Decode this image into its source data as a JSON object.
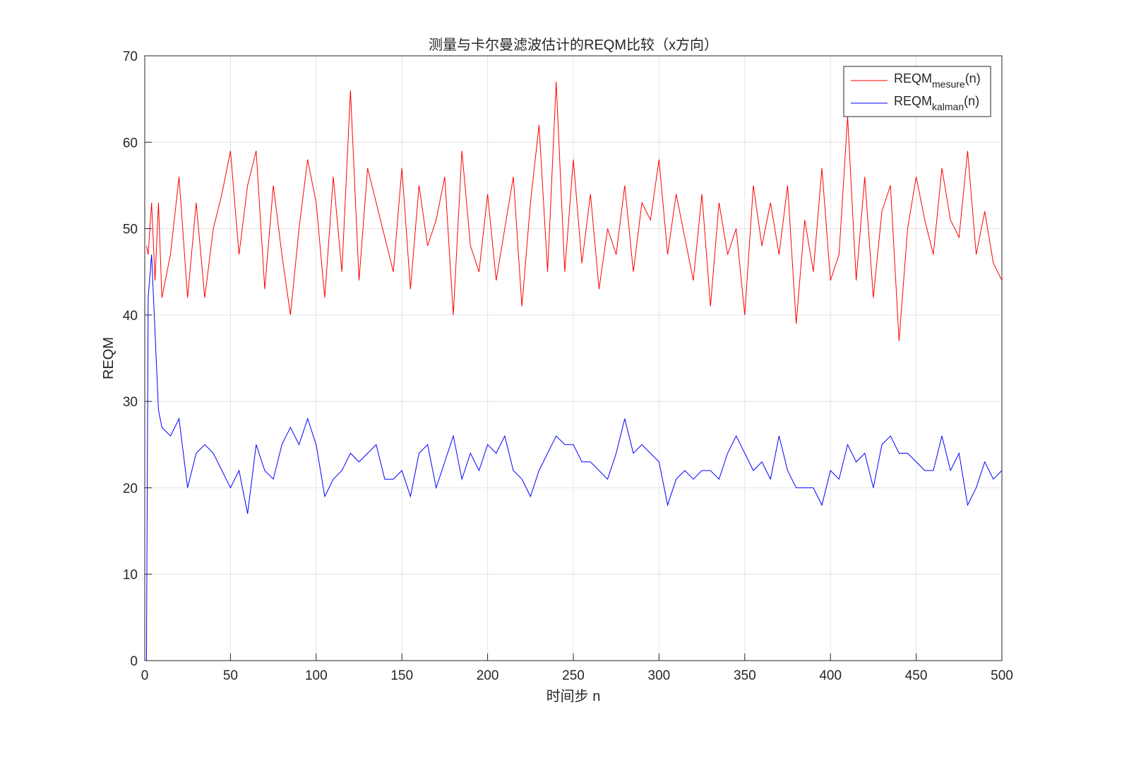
{
  "chart_data": {
    "type": "line",
    "title": "测量与卡尔曼滤波估计的REQM比较（x方向）",
    "xlabel": "时间步 n",
    "ylabel": "REQM",
    "xlim": [
      0,
      500
    ],
    "ylim": [
      0,
      70
    ],
    "xticks": [
      0,
      50,
      100,
      150,
      200,
      250,
      300,
      350,
      400,
      450,
      500
    ],
    "yticks": [
      0,
      10,
      20,
      30,
      40,
      50,
      60,
      70
    ],
    "grid": true,
    "legend": "top-right",
    "x": [
      1,
      2,
      4,
      6,
      8,
      10,
      15,
      20,
      25,
      30,
      35,
      40,
      45,
      50,
      55,
      60,
      65,
      70,
      75,
      80,
      85,
      90,
      95,
      100,
      105,
      110,
      115,
      120,
      125,
      130,
      135,
      140,
      145,
      150,
      155,
      160,
      165,
      170,
      175,
      180,
      185,
      190,
      195,
      200,
      205,
      210,
      215,
      220,
      225,
      230,
      235,
      240,
      245,
      250,
      255,
      260,
      265,
      270,
      275,
      280,
      285,
      290,
      295,
      300,
      305,
      310,
      315,
      320,
      325,
      330,
      335,
      340,
      345,
      350,
      355,
      360,
      365,
      370,
      375,
      380,
      385,
      390,
      395,
      400,
      405,
      410,
      415,
      420,
      425,
      430,
      435,
      440,
      445,
      450,
      455,
      460,
      465,
      470,
      475,
      480,
      485,
      490,
      495,
      500
    ],
    "series": [
      {
        "name": "REQM",
        "name_subscript": "mesure",
        "name_suffix": "(n)",
        "color": "#ff0000",
        "values": [
          48,
          47,
          53,
          44,
          53,
          42,
          47,
          56,
          42,
          53,
          42,
          50,
          54,
          59,
          47,
          55,
          59,
          43,
          55,
          47,
          40,
          50,
          58,
          53,
          42,
          56,
          45,
          66,
          44,
          57,
          53,
          49,
          45,
          57,
          43,
          55,
          48,
          51,
          56,
          40,
          59,
          48,
          45,
          54,
          44,
          50,
          56,
          41,
          53,
          62,
          45,
          67,
          45,
          58,
          46,
          54,
          43,
          50,
          47,
          55,
          45,
          53,
          51,
          58,
          47,
          54,
          49,
          44,
          54,
          41,
          53,
          47,
          50,
          40,
          55,
          48,
          53,
          47,
          55,
          39,
          51,
          45,
          57,
          44,
          47,
          63,
          44,
          56,
          42,
          52,
          55,
          37,
          50,
          56,
          51,
          47,
          57,
          51,
          49,
          59,
          47,
          52,
          46,
          44
        ]
      },
      {
        "name": "REQM",
        "name_subscript": "kalman",
        "name_suffix": "(n)",
        "color": "#0000ff",
        "values": [
          0,
          42,
          47,
          38,
          29,
          27,
          26,
          28,
          20,
          24,
          25,
          24,
          22,
          20,
          22,
          17,
          25,
          22,
          21,
          25,
          27,
          25,
          28,
          25,
          19,
          21,
          22,
          24,
          23,
          24,
          25,
          21,
          21,
          22,
          19,
          24,
          25,
          20,
          23,
          26,
          21,
          24,
          22,
          25,
          24,
          26,
          22,
          21,
          19,
          22,
          24,
          26,
          25,
          25,
          23,
          23,
          22,
          21,
          24,
          28,
          24,
          25,
          24,
          23,
          18,
          21,
          22,
          21,
          22,
          22,
          21,
          24,
          26,
          24,
          22,
          23,
          21,
          26,
          22,
          20,
          20,
          20,
          18,
          22,
          21,
          25,
          23,
          24,
          20,
          25,
          26,
          24,
          24,
          23,
          22,
          22,
          26,
          22,
          24,
          18,
          20,
          23,
          21,
          22
        ]
      }
    ]
  }
}
